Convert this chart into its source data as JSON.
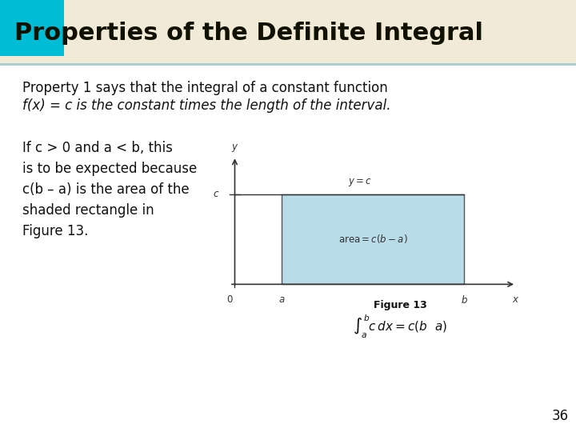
{
  "title": "Properties of the Definite Integral",
  "title_bg_color": "#f0ead6",
  "title_accent_color": "#00bcd4",
  "title_text_color": "#111100",
  "slide_bg_color": "#ffffff",
  "header_stripe_color": "#aacfcf",
  "body_line1": "Property 1 says that the integral of a constant function",
  "body_line2a": "f",
  "body_line2b": "(x) = ",
  "body_line2c": "c",
  "body_line2d": " is the constant times the length of the interval.",
  "left_text_lines": [
    "If c > 0 and a < b, this",
    "is to be expected because",
    "c(b – a) is the area of the",
    "shaded rectangle in",
    "Figure 13."
  ],
  "figure_caption": "Figure 13",
  "rect_fill_color": "#b8dce8",
  "rect_edge_color": "#555555",
  "axis_color": "#333333",
  "page_number": "36"
}
